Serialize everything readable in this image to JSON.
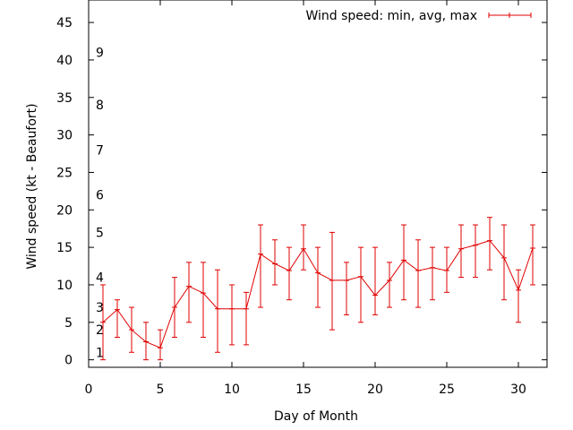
{
  "chart_data": {
    "type": "line",
    "xlabel": "Day of Month",
    "ylabel": "Wind speed (kt - Beaufort)",
    "xlim": [
      0,
      32
    ],
    "ylim": [
      -1,
      48
    ],
    "x_ticks": [
      0,
      5,
      10,
      15,
      20,
      25,
      30
    ],
    "y_ticks": [
      0,
      5,
      10,
      15,
      20,
      25,
      30,
      35,
      40,
      45
    ],
    "grid": false,
    "legend_position": "top-right",
    "beaufort_labels": [
      {
        "label": "1",
        "kt": 1
      },
      {
        "label": "2",
        "kt": 4
      },
      {
        "label": "3",
        "kt": 7
      },
      {
        "label": "4",
        "kt": 11
      },
      {
        "label": "5",
        "kt": 17
      },
      {
        "label": "6",
        "kt": 22
      },
      {
        "label": "7",
        "kt": 28
      },
      {
        "label": "8",
        "kt": 34
      },
      {
        "label": "9",
        "kt": 41
      }
    ],
    "series": [
      {
        "name": "Wind speed: min, avg, max",
        "color": "#e00000",
        "x": [
          1,
          2,
          3,
          4,
          5,
          6,
          7,
          8,
          9,
          10,
          11,
          12,
          13,
          14,
          15,
          16,
          17,
          18,
          19,
          20,
          21,
          22,
          23,
          24,
          25,
          26,
          27,
          28,
          29,
          30,
          31
        ],
        "avg": [
          5,
          6.7,
          4,
          2.4,
          1.6,
          7,
          9.8,
          8.9,
          6.8,
          6.8,
          6.8,
          14.1,
          12.8,
          11.9,
          14.8,
          11.6,
          10.6,
          10.6,
          11.1,
          8.6,
          10.6,
          13.3,
          11.9,
          12.3,
          11.9,
          14.8,
          15.3,
          15.9,
          13.6,
          9.3,
          14.9
        ],
        "min": [
          0,
          3,
          1,
          0,
          0,
          3,
          5,
          3,
          1,
          2,
          2,
          7,
          10,
          8,
          12,
          7,
          4,
          6,
          5,
          6,
          7,
          8,
          7,
          8,
          9,
          11,
          11,
          12,
          8,
          5,
          10
        ],
        "max": [
          10,
          8,
          7,
          5,
          4,
          11,
          13,
          13,
          12,
          10,
          9,
          18,
          16,
          15,
          18,
          15,
          17,
          13,
          15,
          15,
          13,
          18,
          16,
          15,
          15,
          18,
          18,
          19,
          18,
          12,
          18
        ]
      }
    ]
  }
}
